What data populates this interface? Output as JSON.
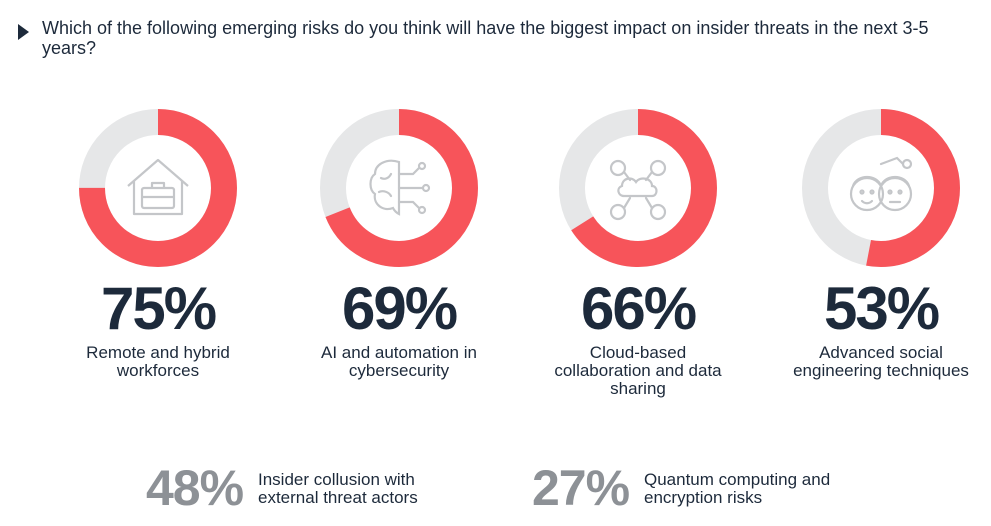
{
  "question": "Which of the following emerging risks do you think will have the biggest impact on insider threats in the next 3-5 years?",
  "colors": {
    "accent": "#f7545a",
    "track": "#e6e7e8",
    "text": "#1d2a3b",
    "muted": "#8d9196"
  },
  "chart_data": {
    "type": "donut",
    "title": "Which of the following emerging risks do you think will have the biggest impact on insider threats in the next 3-5 years?",
    "unit": "%",
    "ylim": [
      0,
      100
    ],
    "categories": [
      "Remote and hybrid workforces",
      "AI and automation in cybersecurity",
      "Cloud-based collaboration and data sharing",
      "Advanced social engineering techniques",
      "Insider collusion with external threat actors",
      "Quantum computing and encryption risks"
    ],
    "values": [
      75,
      69,
      66,
      53,
      48,
      27
    ],
    "items": [
      {
        "value": 75,
        "percent_label": "75%",
        "label": "Remote and hybrid workforces",
        "icon": "house-briefcase-icon"
      },
      {
        "value": 69,
        "percent_label": "69%",
        "label": "AI and automation in cybersecurity",
        "icon": "brain-circuit-icon"
      },
      {
        "value": 66,
        "percent_label": "66%",
        "label": "Cloud-based collaboration and data sharing",
        "icon": "cloud-network-icon"
      },
      {
        "value": 53,
        "percent_label": "53%",
        "label": "Advanced social engineering techniques",
        "icon": "faces-icon"
      }
    ],
    "bottom": [
      {
        "value": 48,
        "percent_label": "48%",
        "label_lines": [
          "Insider collusion with",
          "external threat actors"
        ]
      },
      {
        "value": 27,
        "percent_label": "27%",
        "label_lines": [
          "Quantum computing and",
          "encryption risks"
        ]
      }
    ]
  }
}
